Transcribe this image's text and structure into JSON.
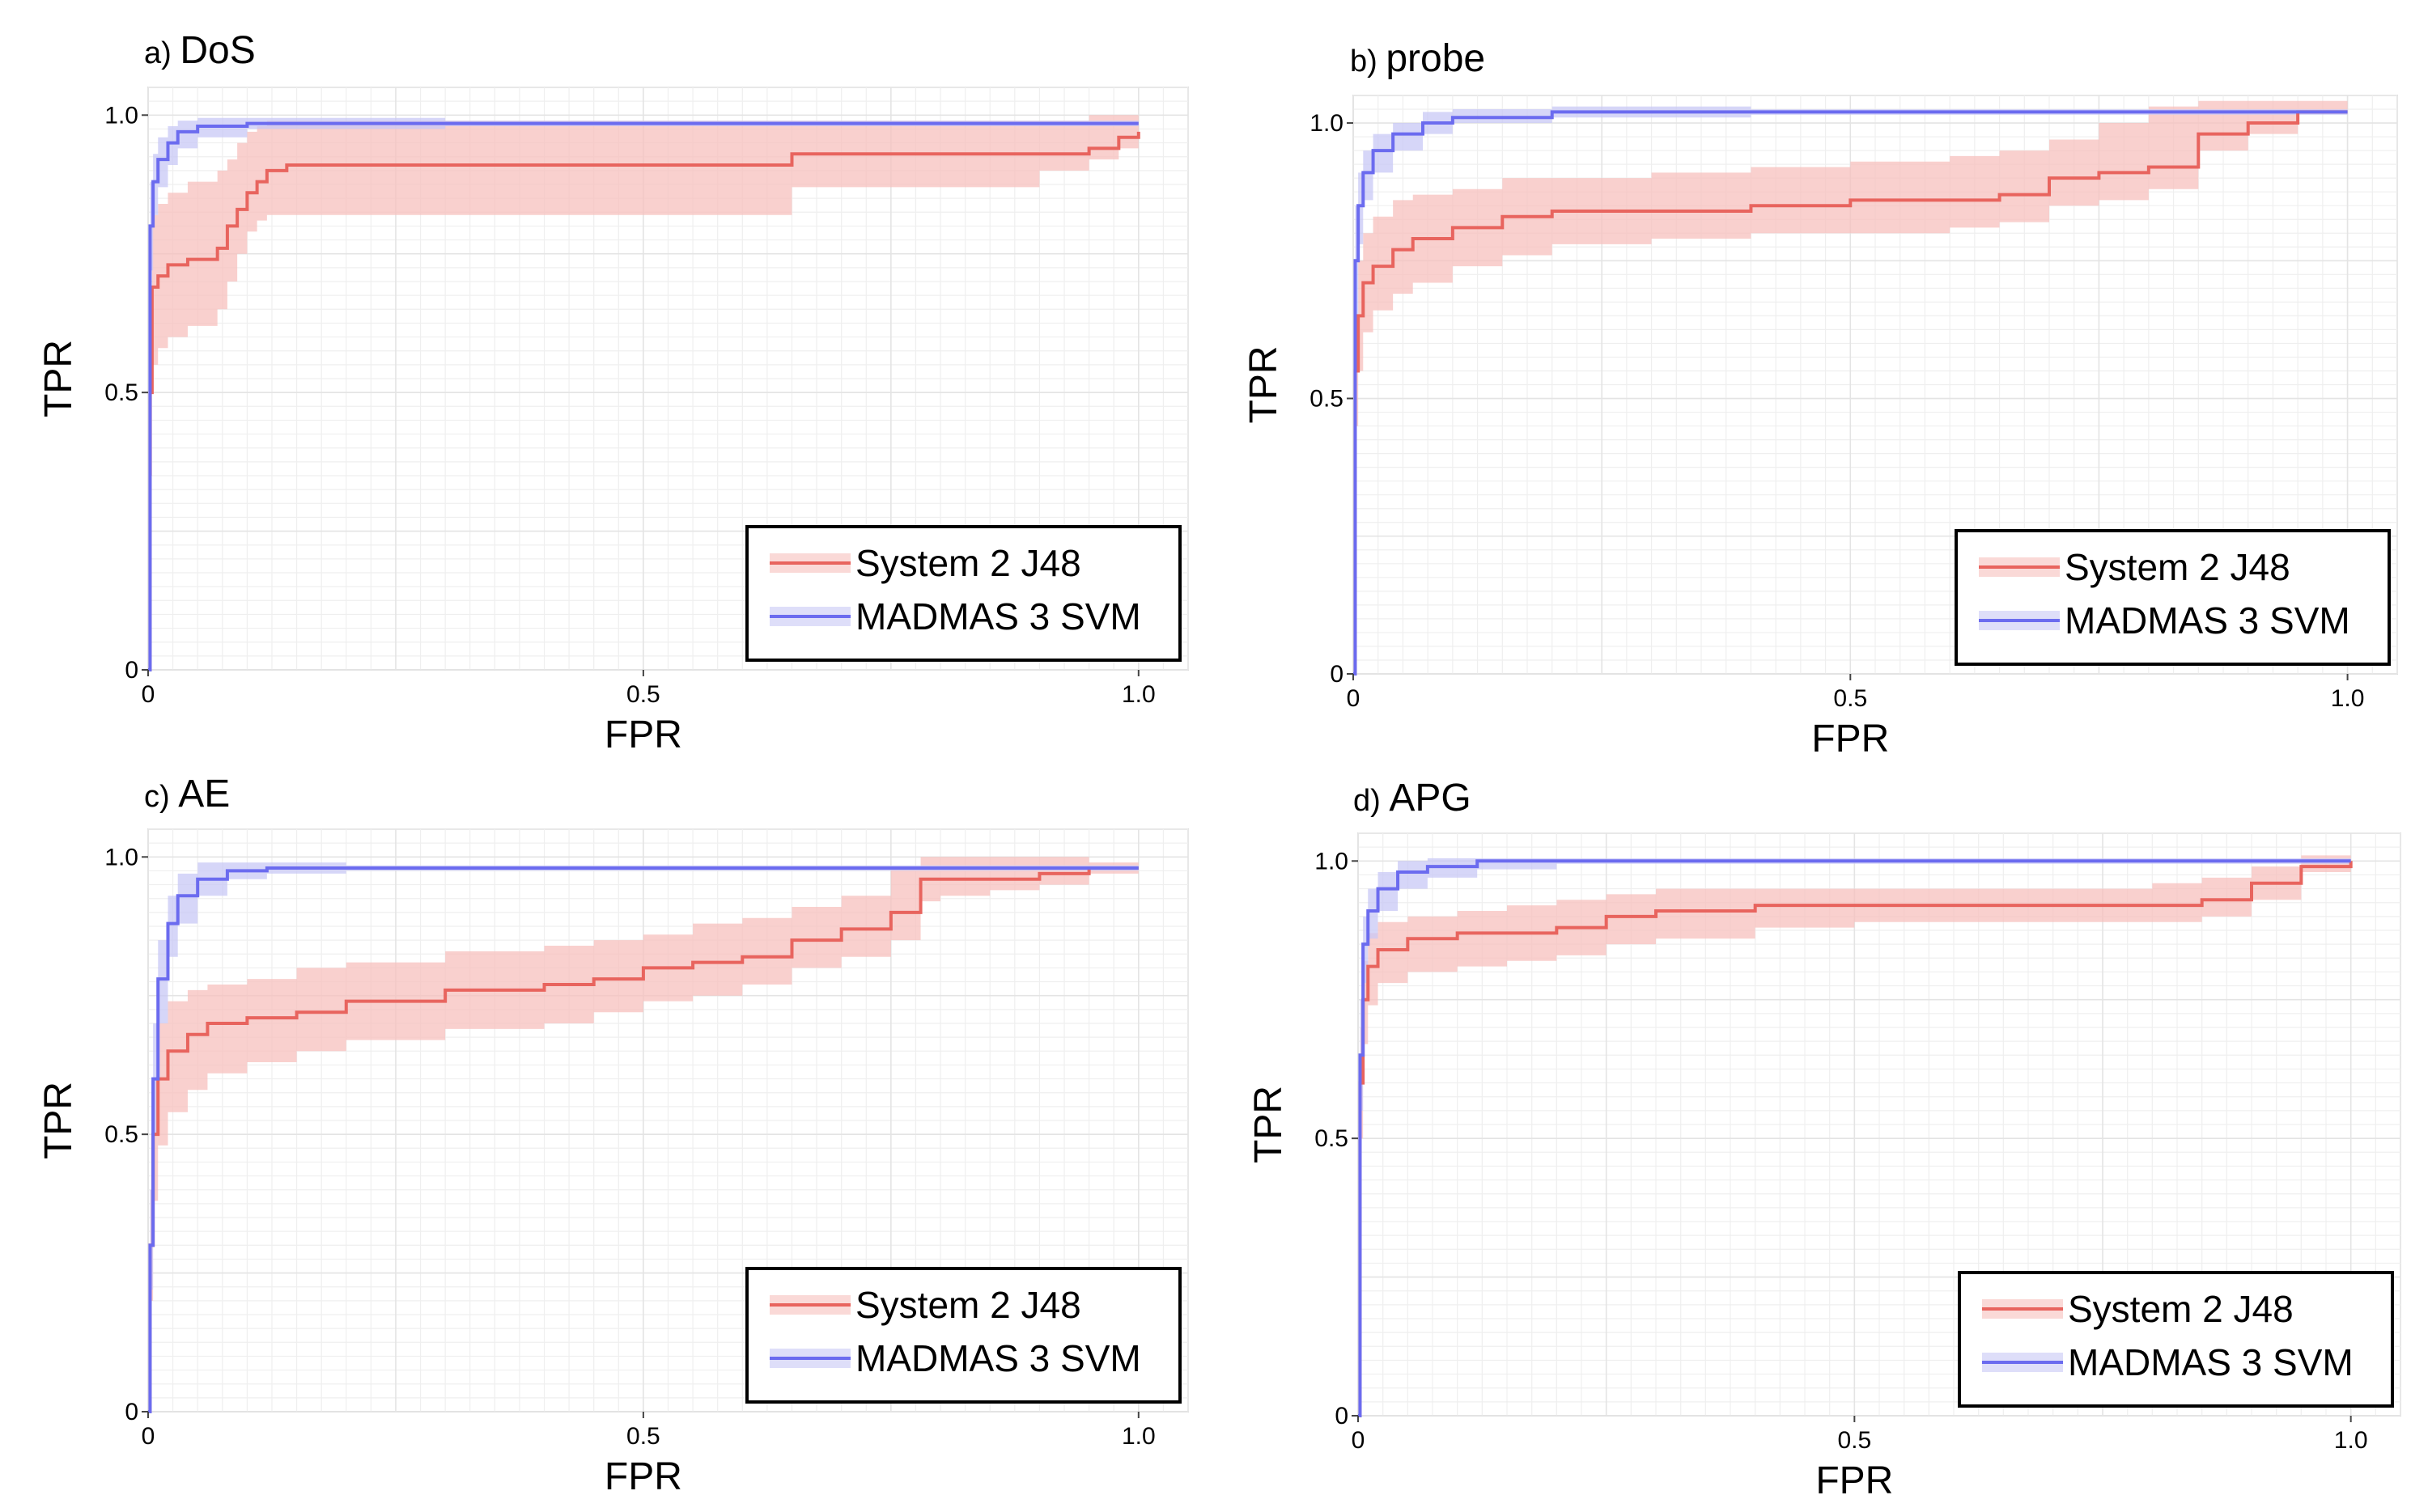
{
  "figure": {
    "description_free": true
  },
  "chart_data": [
    {
      "type": "line",
      "panel_letter": "a)",
      "title": "DoS",
      "xlabel": "FPR",
      "ylabel": "TPR",
      "xlim": [
        0,
        1.05
      ],
      "ylim": [
        0,
        1.05
      ],
      "xticks": [
        "0",
        "0.5",
        "1.0"
      ],
      "xtick_values": [
        0,
        0.5,
        1.0
      ],
      "yticks": [
        "0",
        "0.5",
        "1.0"
      ],
      "ytick_values": [
        0,
        0.5,
        1.0
      ],
      "legend": {
        "position": "bottom-right",
        "entries": [
          "System 2 J48",
          "MADMAS 3 SVM"
        ]
      },
      "series": [
        {
          "name": "System 2 J48",
          "color": "#e8645e",
          "band_color": "#f7c0bd",
          "x": [
            0,
            0.002,
            0.004,
            0.01,
            0.02,
            0.04,
            0.07,
            0.08,
            0.09,
            0.1,
            0.11,
            0.12,
            0.14,
            0.2,
            0.3,
            0.4,
            0.5,
            0.6,
            0.65,
            0.7,
            0.8,
            0.9,
            0.95,
            0.98,
            1.0
          ],
          "y": [
            0,
            0.5,
            0.69,
            0.71,
            0.73,
            0.74,
            0.76,
            0.8,
            0.83,
            0.86,
            0.88,
            0.9,
            0.91,
            0.91,
            0.91,
            0.91,
            0.91,
            0.91,
            0.93,
            0.93,
            0.93,
            0.93,
            0.94,
            0.96,
            0.97
          ],
          "lower": [
            0,
            0.35,
            0.55,
            0.58,
            0.6,
            0.62,
            0.65,
            0.7,
            0.75,
            0.79,
            0.81,
            0.82,
            0.82,
            0.82,
            0.82,
            0.82,
            0.82,
            0.82,
            0.87,
            0.87,
            0.87,
            0.9,
            0.92,
            0.94,
            0.96
          ],
          "upper": [
            0,
            0.65,
            0.82,
            0.84,
            0.86,
            0.88,
            0.9,
            0.92,
            0.95,
            0.97,
            0.98,
            0.99,
            0.99,
            0.99,
            0.99,
            0.99,
            0.99,
            0.99,
            0.99,
            0.99,
            0.99,
            0.99,
            1.0,
            1.0,
            1.0
          ]
        },
        {
          "name": "MADMAS 3 SVM",
          "color": "#6b6bef",
          "band_color": "#c8c8f5",
          "x": [
            0,
            0.002,
            0.005,
            0.01,
            0.02,
            0.03,
            0.05,
            0.1,
            0.3,
            1.0
          ],
          "y": [
            0,
            0.8,
            0.88,
            0.92,
            0.95,
            0.97,
            0.98,
            0.985,
            0.985,
            0.985
          ],
          "lower": [
            0,
            0.72,
            0.82,
            0.87,
            0.91,
            0.94,
            0.96,
            0.975,
            0.98,
            0.98
          ],
          "upper": [
            0,
            0.88,
            0.93,
            0.96,
            0.98,
            0.99,
            0.995,
            0.995,
            0.99,
            0.99
          ]
        }
      ]
    },
    {
      "type": "line",
      "panel_letter": "b)",
      "title": "probe",
      "xlabel": "FPR",
      "ylabel": "TPR",
      "xlim": [
        0,
        1.05
      ],
      "ylim": [
        0,
        1.05
      ],
      "xticks": [
        "0",
        "0.5",
        "1.0"
      ],
      "xtick_values": [
        0,
        0.5,
        1.0
      ],
      "yticks": [
        "0",
        "0.5",
        "1.0"
      ],
      "ytick_values": [
        0,
        0.5,
        1.0
      ],
      "legend": {
        "position": "bottom-right",
        "entries": [
          "System 2 J48",
          "MADMAS 3 SVM"
        ]
      },
      "series": [
        {
          "name": "System 2 J48",
          "color": "#e8645e",
          "band_color": "#f7c0bd",
          "x": [
            0,
            0.002,
            0.005,
            0.01,
            0.02,
            0.04,
            0.06,
            0.1,
            0.15,
            0.2,
            0.3,
            0.4,
            0.5,
            0.6,
            0.65,
            0.7,
            0.75,
            0.8,
            0.85,
            0.9,
            0.95,
            1.0
          ],
          "y": [
            0,
            0.55,
            0.65,
            0.71,
            0.74,
            0.77,
            0.79,
            0.81,
            0.83,
            0.84,
            0.84,
            0.85,
            0.86,
            0.86,
            0.87,
            0.9,
            0.91,
            0.92,
            0.98,
            1.0,
            1.02,
            1.02
          ],
          "lower": [
            0,
            0.45,
            0.55,
            0.62,
            0.66,
            0.69,
            0.71,
            0.74,
            0.76,
            0.78,
            0.79,
            0.8,
            0.8,
            0.81,
            0.82,
            0.85,
            0.86,
            0.88,
            0.95,
            0.98,
            1.02,
            1.02
          ],
          "upper": [
            0,
            0.65,
            0.75,
            0.8,
            0.83,
            0.86,
            0.87,
            0.88,
            0.9,
            0.9,
            0.91,
            0.92,
            0.93,
            0.94,
            0.95,
            0.97,
            1.0,
            1.03,
            1.04,
            1.04,
            1.04,
            1.02
          ]
        },
        {
          "name": "MADMAS 3 SVM",
          "color": "#6b6bef",
          "band_color": "#c8c8f5",
          "x": [
            0,
            0.002,
            0.005,
            0.01,
            0.02,
            0.04,
            0.07,
            0.1,
            0.2,
            0.4,
            1.0
          ],
          "y": [
            0,
            0.75,
            0.85,
            0.91,
            0.95,
            0.98,
            1.0,
            1.01,
            1.02,
            1.02,
            1.02
          ],
          "lower": [
            0,
            0.65,
            0.78,
            0.86,
            0.91,
            0.95,
            0.98,
            1.0,
            1.01,
            1.015,
            1.02
          ],
          "upper": [
            0,
            0.85,
            0.91,
            0.95,
            0.98,
            1.0,
            1.02,
            1.025,
            1.03,
            1.025,
            1.02
          ]
        }
      ]
    },
    {
      "type": "line",
      "panel_letter": "c)",
      "title": "AE",
      "xlabel": "FPR",
      "ylabel": "TPR",
      "xlim": [
        0,
        1.05
      ],
      "ylim": [
        0,
        1.05
      ],
      "xticks": [
        "0",
        "0.5",
        "1.0"
      ],
      "xtick_values": [
        0,
        0.5,
        1.0
      ],
      "yticks": [
        "0",
        "0.5",
        "1.0"
      ],
      "ytick_values": [
        0,
        0.5,
        1.0
      ],
      "legend": {
        "position": "bottom-right",
        "entries": [
          "System 2 J48",
          "MADMAS 3 SVM"
        ]
      },
      "series": [
        {
          "name": "System 2 J48",
          "color": "#e8645e",
          "band_color": "#f7c0bd",
          "x": [
            0,
            0.002,
            0.005,
            0.01,
            0.02,
            0.04,
            0.06,
            0.1,
            0.15,
            0.2,
            0.3,
            0.4,
            0.45,
            0.5,
            0.55,
            0.6,
            0.65,
            0.7,
            0.75,
            0.78,
            0.8,
            0.85,
            0.9,
            0.95,
            1.0
          ],
          "y": [
            0,
            0.3,
            0.5,
            0.6,
            0.65,
            0.68,
            0.7,
            0.71,
            0.72,
            0.74,
            0.76,
            0.77,
            0.78,
            0.8,
            0.81,
            0.82,
            0.85,
            0.87,
            0.9,
            0.96,
            0.96,
            0.96,
            0.97,
            0.98,
            0.98
          ],
          "lower": [
            0,
            0.2,
            0.38,
            0.48,
            0.54,
            0.58,
            0.61,
            0.63,
            0.65,
            0.67,
            0.69,
            0.7,
            0.72,
            0.74,
            0.75,
            0.77,
            0.8,
            0.82,
            0.85,
            0.92,
            0.93,
            0.94,
            0.95,
            0.97,
            0.98
          ],
          "upper": [
            0,
            0.4,
            0.6,
            0.7,
            0.74,
            0.76,
            0.77,
            0.78,
            0.8,
            0.81,
            0.83,
            0.84,
            0.85,
            0.86,
            0.88,
            0.89,
            0.91,
            0.93,
            0.98,
            1.0,
            1.0,
            1.0,
            1.0,
            0.99,
            0.98
          ]
        },
        {
          "name": "MADMAS 3 SVM",
          "color": "#6b6bef",
          "band_color": "#c8c8f5",
          "x": [
            0,
            0.002,
            0.005,
            0.01,
            0.02,
            0.03,
            0.05,
            0.08,
            0.12,
            0.2,
            1.0
          ],
          "y": [
            0,
            0.3,
            0.6,
            0.78,
            0.88,
            0.93,
            0.96,
            0.975,
            0.98,
            0.98,
            0.98
          ],
          "lower": [
            0,
            0.22,
            0.5,
            0.7,
            0.82,
            0.88,
            0.93,
            0.96,
            0.97,
            0.975,
            0.98
          ],
          "upper": [
            0,
            0.4,
            0.7,
            0.85,
            0.93,
            0.97,
            0.99,
            0.99,
            0.99,
            0.985,
            0.98
          ]
        }
      ]
    },
    {
      "type": "line",
      "panel_letter": "d)",
      "title": "APG",
      "xlabel": "FPR",
      "ylabel": "TPR",
      "xlim": [
        0,
        1.05
      ],
      "ylim": [
        0,
        1.05
      ],
      "xticks": [
        "0",
        "0.5",
        "1.0"
      ],
      "xtick_values": [
        0,
        0.5,
        1.0
      ],
      "yticks": [
        "0",
        "0.5",
        "1.0"
      ],
      "ytick_values": [
        0,
        0.5,
        1.0
      ],
      "legend": {
        "position": "bottom-right",
        "entries": [
          "System 2 J48",
          "MADMAS 3 SVM"
        ]
      },
      "series": [
        {
          "name": "System 2 J48",
          "color": "#e8645e",
          "band_color": "#f7c0bd",
          "x": [
            0,
            0.002,
            0.005,
            0.01,
            0.02,
            0.05,
            0.1,
            0.15,
            0.2,
            0.25,
            0.3,
            0.4,
            0.5,
            0.6,
            0.7,
            0.8,
            0.85,
            0.9,
            0.95,
            1.0
          ],
          "y": [
            0,
            0.6,
            0.75,
            0.81,
            0.84,
            0.86,
            0.87,
            0.87,
            0.88,
            0.9,
            0.91,
            0.92,
            0.92,
            0.92,
            0.92,
            0.92,
            0.93,
            0.96,
            0.99,
            1.0
          ],
          "lower": [
            0,
            0.5,
            0.67,
            0.74,
            0.78,
            0.8,
            0.81,
            0.82,
            0.83,
            0.85,
            0.86,
            0.88,
            0.89,
            0.89,
            0.89,
            0.89,
            0.9,
            0.93,
            0.98,
            1.0
          ],
          "upper": [
            0,
            0.7,
            0.82,
            0.87,
            0.89,
            0.9,
            0.91,
            0.92,
            0.93,
            0.94,
            0.95,
            0.95,
            0.95,
            0.95,
            0.95,
            0.96,
            0.97,
            0.99,
            1.01,
            1.0
          ]
        },
        {
          "name": "MADMAS 3 SVM",
          "color": "#6b6bef",
          "band_color": "#c8c8f5",
          "x": [
            0,
            0.002,
            0.005,
            0.01,
            0.02,
            0.04,
            0.07,
            0.12,
            0.2,
            1.0
          ],
          "y": [
            0,
            0.65,
            0.85,
            0.91,
            0.95,
            0.98,
            0.99,
            1.0,
            1.0,
            1.0
          ],
          "lower": [
            0,
            0.55,
            0.78,
            0.86,
            0.91,
            0.95,
            0.97,
            0.985,
            0.995,
            1.0
          ],
          "upper": [
            0,
            0.75,
            0.9,
            0.95,
            0.98,
            1.0,
            1.005,
            1.005,
            1.005,
            1.0
          ]
        }
      ]
    }
  ]
}
